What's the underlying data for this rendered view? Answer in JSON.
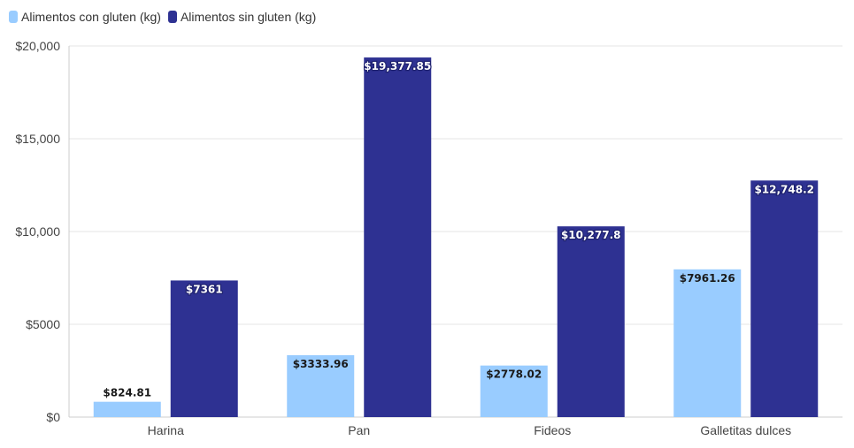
{
  "chart_data": {
    "type": "bar",
    "categories": [
      "Harina",
      "Pan",
      "Fideos",
      "Galletitas dulces"
    ],
    "series": [
      {
        "name": "Alimentos con gluten (kg)",
        "color": "#99ccff",
        "values": [
          824.81,
          3333.96,
          2778.02,
          7961.26
        ],
        "labels": [
          "$824.81",
          "$3333.96",
          "$2778.02",
          "$7961.26"
        ]
      },
      {
        "name": "Alimentos sin gluten (kg)",
        "color": "#2e3192",
        "values": [
          7361,
          19377.85,
          10277.8,
          12748.2
        ],
        "labels": [
          "$7361",
          "$19,377.85",
          "$10,277.8",
          "$12,748.2"
        ]
      }
    ],
    "ylim": [
      0,
      20000
    ],
    "yticks": [
      {
        "value": 0,
        "label": "$0"
      },
      {
        "value": 5000,
        "label": "$5000"
      },
      {
        "value": 10000,
        "label": "$10,000"
      },
      {
        "value": 15000,
        "label": "$15,000"
      },
      {
        "value": 20000,
        "label": "$20,000"
      }
    ],
    "grid": true,
    "legend_position": "top-left",
    "title": "",
    "xlabel": "",
    "ylabel": ""
  }
}
